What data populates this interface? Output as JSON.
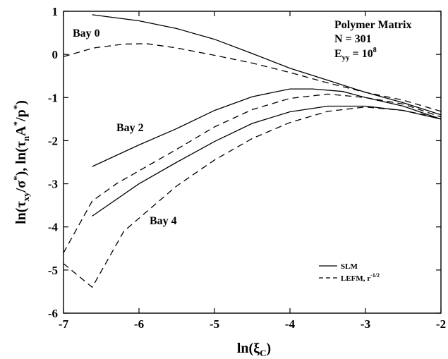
{
  "chart_data": {
    "type": "line",
    "xlabel_main": "ln(ξ",
    "xlabel_sub": "C",
    "xlabel_close": ")",
    "ylabel_parts": [
      {
        "t": "ln(τ"
      },
      {
        "t": "xy",
        "sub": true
      },
      {
        "t": "/σ"
      },
      {
        "t": "*",
        "sup": true
      },
      {
        "t": "), ln(τ"
      },
      {
        "t": "n",
        "sub": true
      },
      {
        "t": "A"
      },
      {
        "t": "*",
        "sup": true
      },
      {
        "t": "/p"
      },
      {
        "t": "*",
        "sup": true
      },
      {
        "t": ")"
      }
    ],
    "xlim": [
      -7,
      -2
    ],
    "ylim": [
      -6,
      1
    ],
    "xticks": [
      -7,
      -6,
      -5,
      -4,
      -3,
      -2
    ],
    "yticks": [
      -6,
      -5,
      -4,
      -3,
      -2,
      -1,
      0,
      1
    ],
    "xtick_labels": [
      "-7",
      "-6",
      "-5",
      "-4",
      "-3",
      "-2"
    ],
    "ytick_labels": [
      "-6",
      "-5",
      "-4",
      "-3",
      "-2",
      "-1",
      "0",
      "1"
    ],
    "annotations": {
      "title_lines": [
        "Polymer Matrix",
        "N = 301"
      ],
      "eyy": {
        "main": "E",
        "sub": "yy",
        "eq": " = 10",
        "sup": "8"
      },
      "bay0": "Bay 0",
      "bay2": "Bay 2",
      "bay4": "Bay 4"
    },
    "legend": {
      "slm": "SLM",
      "lefm": "LEFM, r",
      "lefm_sup": "-1/2"
    },
    "series": [
      {
        "group": "Bay 0",
        "style": "solid",
        "x": [
          -6.62,
          -6.0,
          -5.5,
          -5.0,
          -4.5,
          -4.0,
          -3.5,
          -3.0,
          -2.5,
          -2.0
        ],
        "y": [
          0.92,
          0.78,
          0.6,
          0.35,
          0.02,
          -0.32,
          -0.6,
          -0.88,
          -1.12,
          -1.4
        ]
      },
      {
        "group": "Bay 0",
        "style": "dashed",
        "x": [
          -7.0,
          -6.6,
          -6.2,
          -5.9,
          -5.5,
          -5.0,
          -4.5,
          -4.0,
          -3.5,
          -3.0,
          -2.5,
          -2.0
        ],
        "y": [
          -0.05,
          0.15,
          0.24,
          0.25,
          0.15,
          -0.02,
          -0.2,
          -0.42,
          -0.66,
          -0.88,
          -1.06,
          -1.32
        ]
      },
      {
        "group": "Bay 2",
        "style": "solid",
        "x": [
          -6.62,
          -6.0,
          -5.5,
          -5.0,
          -4.5,
          -4.0,
          -3.7,
          -3.3,
          -3.0,
          -2.5,
          -2.0
        ],
        "y": [
          -2.6,
          -2.1,
          -1.72,
          -1.3,
          -0.98,
          -0.8,
          -0.8,
          -0.86,
          -1.0,
          -1.2,
          -1.5
        ]
      },
      {
        "group": "Bay 2",
        "style": "dashed",
        "x": [
          -7.0,
          -6.62,
          -6.3,
          -6.0,
          -5.5,
          -5.0,
          -4.5,
          -4.0,
          -3.5,
          -3.0,
          -2.5,
          -2.0
        ],
        "y": [
          -4.6,
          -3.4,
          -3.0,
          -2.7,
          -2.2,
          -1.68,
          -1.28,
          -1.02,
          -0.92,
          -1.0,
          -1.15,
          -1.45
        ]
      },
      {
        "group": "Bay 4",
        "style": "solid",
        "x": [
          -6.62,
          -6.0,
          -5.5,
          -5.0,
          -4.5,
          -4.0,
          -3.5,
          -3.0,
          -2.5,
          -2.0
        ],
        "y": [
          -3.75,
          -3.0,
          -2.5,
          -2.02,
          -1.6,
          -1.33,
          -1.2,
          -1.2,
          -1.3,
          -1.5
        ]
      },
      {
        "group": "Bay 4",
        "style": "dashed",
        "x": [
          -7.0,
          -6.62,
          -6.2,
          -5.8,
          -5.5,
          -5.0,
          -4.5,
          -4.0,
          -3.5,
          -3.0,
          -2.5,
          -2.0
        ],
        "y": [
          -4.85,
          -5.4,
          -4.1,
          -3.5,
          -3.05,
          -2.45,
          -1.95,
          -1.58,
          -1.32,
          -1.22,
          -1.3,
          -1.48
        ]
      }
    ]
  }
}
